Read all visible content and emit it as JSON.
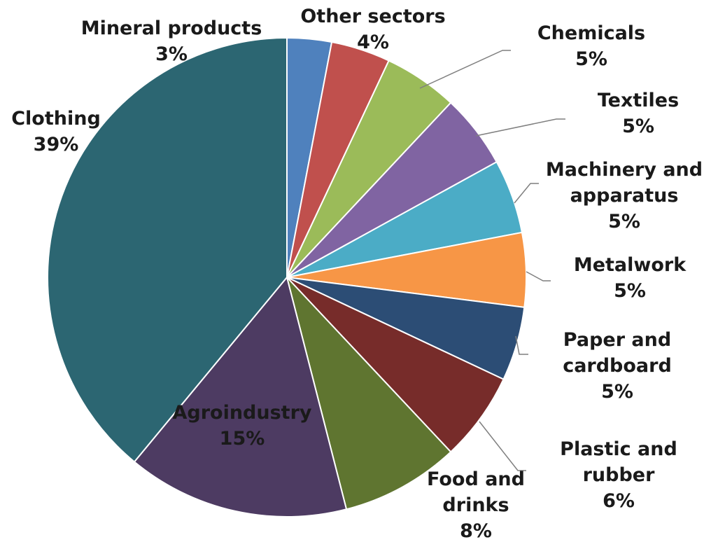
{
  "chart_data": {
    "type": "pie",
    "start_angle_deg": 0,
    "direction": "clockwise",
    "series": [
      {
        "name": "Mineral products",
        "lines": [
          "Mineral products"
        ],
        "value": 3,
        "pct": "3%",
        "color": "#4f81bd"
      },
      {
        "name": "Other sectors",
        "lines": [
          "Other sectors"
        ],
        "value": 4,
        "pct": "4%",
        "color": "#c0504d"
      },
      {
        "name": "Chemicals",
        "lines": [
          "Chemicals"
        ],
        "value": 5,
        "pct": "5%",
        "color": "#9bbb59"
      },
      {
        "name": "Textiles",
        "lines": [
          "Textiles"
        ],
        "value": 5,
        "pct": "5%",
        "color": "#8064a2"
      },
      {
        "name": "Machinery and apparatus",
        "lines": [
          "Machinery and",
          "apparatus"
        ],
        "value": 5,
        "pct": "5%",
        "color": "#4bacc6"
      },
      {
        "name": "Metalwork",
        "lines": [
          "Metalwork"
        ],
        "value": 5,
        "pct": "5%",
        "color": "#f79646"
      },
      {
        "name": "Paper and cardboard",
        "lines": [
          "Paper and",
          "cardboard"
        ],
        "value": 5,
        "pct": "5%",
        "color": "#2c4d75"
      },
      {
        "name": "Plastic and rubber",
        "lines": [
          "Plastic and",
          "rubber"
        ],
        "value": 6,
        "pct": "6%",
        "color": "#772c2a"
      },
      {
        "name": "Food and drinks",
        "lines": [
          "Food and",
          "drinks"
        ],
        "value": 8,
        "pct": "8%",
        "color": "#5f7530"
      },
      {
        "name": "Agroindustry",
        "lines": [
          "Agroindustry"
        ],
        "value": 15,
        "pct": "15%",
        "color": "#4d3b62"
      },
      {
        "name": "Clothing",
        "lines": [
          "Clothing"
        ],
        "value": 39,
        "pct": "39%",
        "color": "#2c6672"
      }
    ]
  }
}
